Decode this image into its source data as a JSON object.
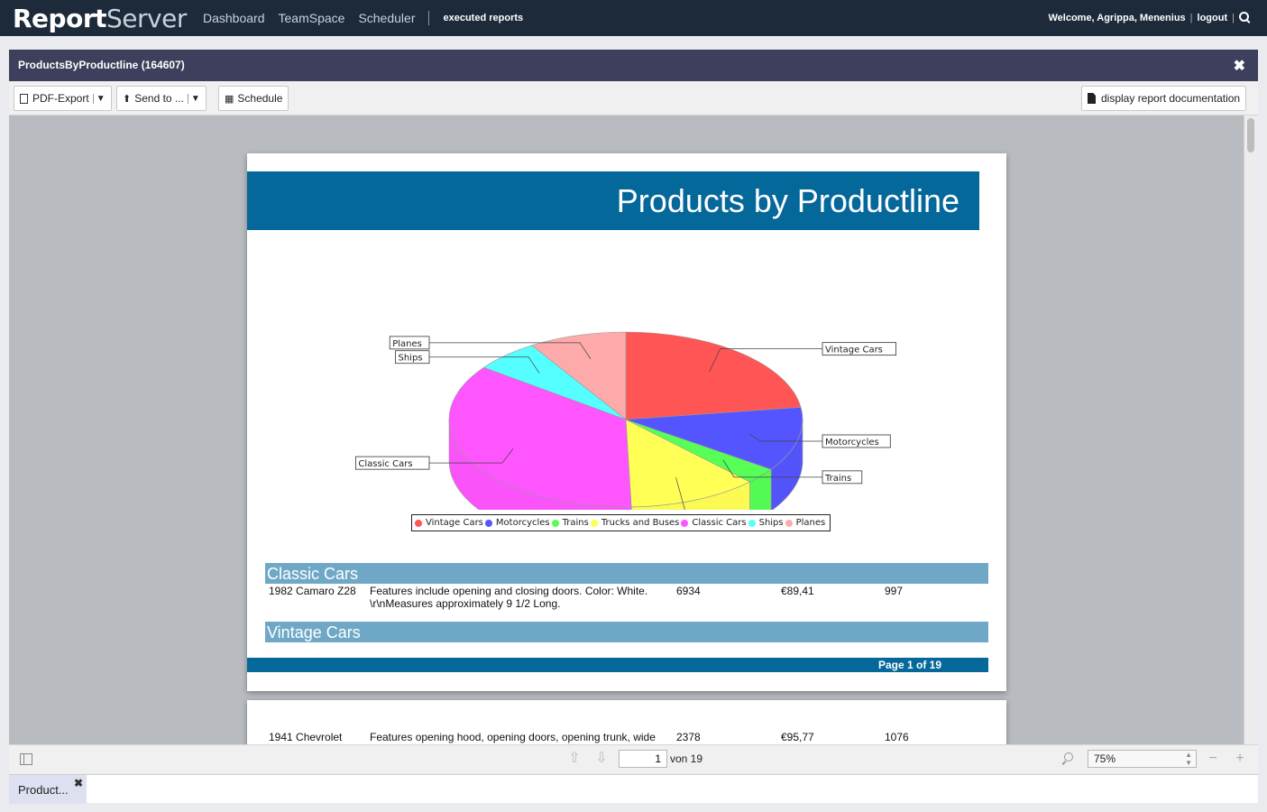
{
  "app": {
    "brand_part1": "Report",
    "brand_part2": "Server",
    "nav": [
      "Dashboard",
      "TeamSpace",
      "Scheduler"
    ],
    "nav_active": "executed reports",
    "welcome": "Welcome, Agrippa, Menenius",
    "logout": "logout"
  },
  "window": {
    "title": "ProductsByProductline (164607)",
    "close_glyph": "✖"
  },
  "toolbar": {
    "pdf_export": "PDF-Export",
    "send_to": "Send to ...",
    "schedule": "Schedule",
    "documentation": "display report documentation"
  },
  "report": {
    "title": "Products by Productline",
    "groups": [
      {
        "name": "Classic Cars",
        "rows": [
          {
            "product": "1982 Camaro Z28",
            "desc1": "Features include opening and closing doors. Color: White.",
            "desc2": "\\r\\nMeasures approximately 9 1/2 Long.",
            "qty": "6934",
            "price": "€89,41",
            "stock": "997"
          }
        ]
      },
      {
        "name": "Vintage Cars",
        "rows": []
      }
    ],
    "page_footer": "Page 1 of 19",
    "page2_row": {
      "product": "1941 Chevrolet",
      "desc1": "Features opening hood, opening doors, opening trunk, wide",
      "qty": "2378",
      "price": "€95,77",
      "stock": "1076"
    }
  },
  "chart_data": {
    "type": "pie",
    "categories": [
      "Vintage Cars",
      "Motorcycles",
      "Trains",
      "Trucks and Buses",
      "Classic Cars",
      "Ships",
      "Planes"
    ],
    "values": [
      23,
      12,
      3,
      12,
      36,
      6,
      9
    ],
    "colors": [
      "#ff5555",
      "#5555ff",
      "#55ff55",
      "#ffff55",
      "#ff55ff",
      "#55ffff",
      "#ffaaaa"
    ],
    "legend_position": "bottom"
  },
  "pager": {
    "page_value": "1",
    "of_label": "von 19",
    "zoom": "75%"
  },
  "tabs": [
    {
      "label": "Product..."
    }
  ]
}
